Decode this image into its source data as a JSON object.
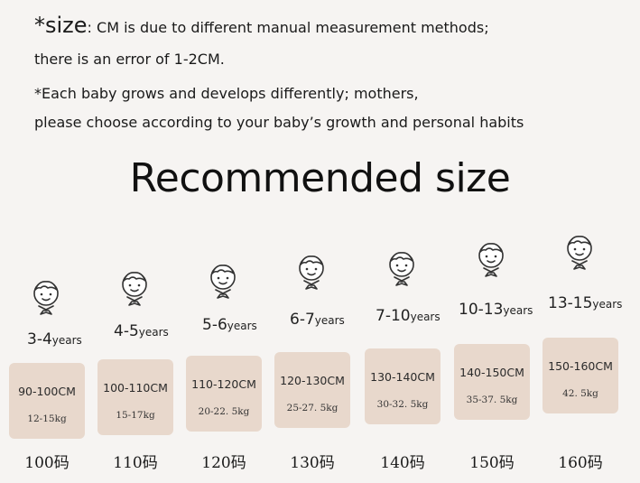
{
  "notes": {
    "line1_star": "*size",
    "line1_rest": ": CM is due to different manual measurement methods;",
    "line2": "there is an error of 1-2CM.",
    "line3": "*Each baby grows and develops differently; mothers,",
    "line4": "please choose according to your baby’s growth and personal habits"
  },
  "title": "Recommended size",
  "sizes": [
    {
      "age": "3-4",
      "unit": "years",
      "cm": "90-100CM",
      "kg": "12-15kg",
      "code": "100码"
    },
    {
      "age": "4-5",
      "unit": "years",
      "cm": "100-110CM",
      "kg": "15-17kg",
      "code": "110码"
    },
    {
      "age": "5-6",
      "unit": "years",
      "cm": "110-120CM",
      "kg": "20-22. 5kg",
      "code": "120码"
    },
    {
      "age": "6-7",
      "unit": "years",
      "cm": "120-130CM",
      "kg": "25-27. 5kg",
      "code": "130码"
    },
    {
      "age": "7-10",
      "unit": "years",
      "cm": "130-140CM",
      "kg": "30-32. 5kg",
      "code": "140码"
    },
    {
      "age": "10-13",
      "unit": "years",
      "cm": "140-150CM",
      "kg": "35-37. 5kg",
      "code": "150码"
    },
    {
      "age": "13-15",
      "unit": "years",
      "cm": "150-160CM",
      "kg": "42. 5kg",
      "code": "160码"
    }
  ],
  "colors": {
    "card": "#e8d8cc",
    "background": "#f6f4f2"
  },
  "icon": "child-face-icon"
}
